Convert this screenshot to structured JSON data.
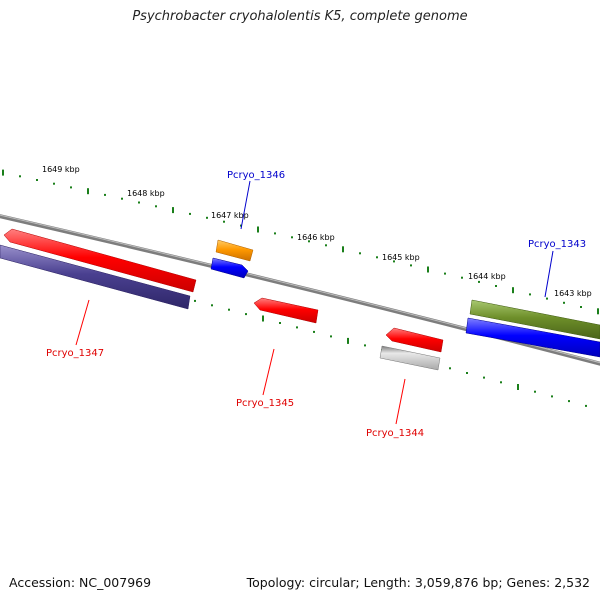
{
  "title": "Psychrobacter cryohalolentis K5, complete genome",
  "accession": "Accession: NC_007969",
  "summary": "Topology: circular; Length: 3,059,876 bp; Genes: 2,532",
  "scale": {
    "ticks": [
      "1649 kbp",
      "1648 kbp",
      "1647 kbp",
      "1646 kbp",
      "1645 kbp",
      "1644 kbp",
      "1643 kbp"
    ]
  },
  "genes": {
    "Pcryo_1347": {
      "label": "Pcryo_1347",
      "color": "#ff0000"
    },
    "Pcryo_1346": {
      "label": "Pcryo_1346",
      "color": "#0000cc"
    },
    "Pcryo_1345": {
      "label": "Pcryo_1345",
      "color": "#ff0000"
    },
    "Pcryo_1344": {
      "label": "Pcryo_1344",
      "color": "#ff0000"
    },
    "Pcryo_1343": {
      "label": "Pcryo_1343",
      "color": "#0000cc"
    }
  },
  "colors": {
    "backbone": "#808080",
    "tick": "#1a7f1a",
    "red_gene": "#ff1a1a",
    "blue_gene": "#1a1aff",
    "navy_gene": "#4a4090",
    "orange_gene": "#ff9900",
    "olive_gene": "#6e8f2a",
    "grey_gene": "#b8b8b8"
  }
}
